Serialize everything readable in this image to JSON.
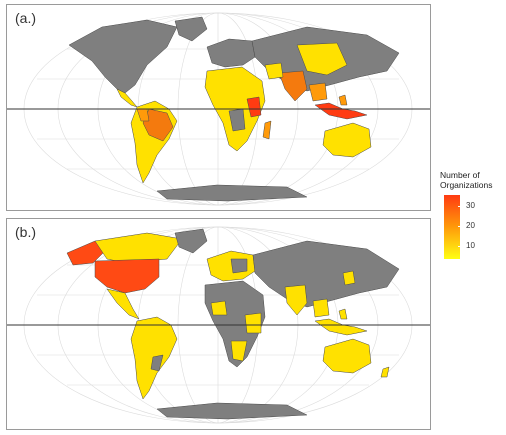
{
  "panels": [
    {
      "label": "(a.)"
    },
    {
      "label": "(b.)"
    }
  ],
  "legend": {
    "title_line1": "Number of",
    "title_line2": "Organizations",
    "ticks": [
      "30",
      "20",
      "10"
    ],
    "colors": {
      "high": "#ff3b12",
      "mid": "#ff9a0a",
      "low": "#ffff14",
      "no_data": "#7f7f7f"
    }
  }
}
